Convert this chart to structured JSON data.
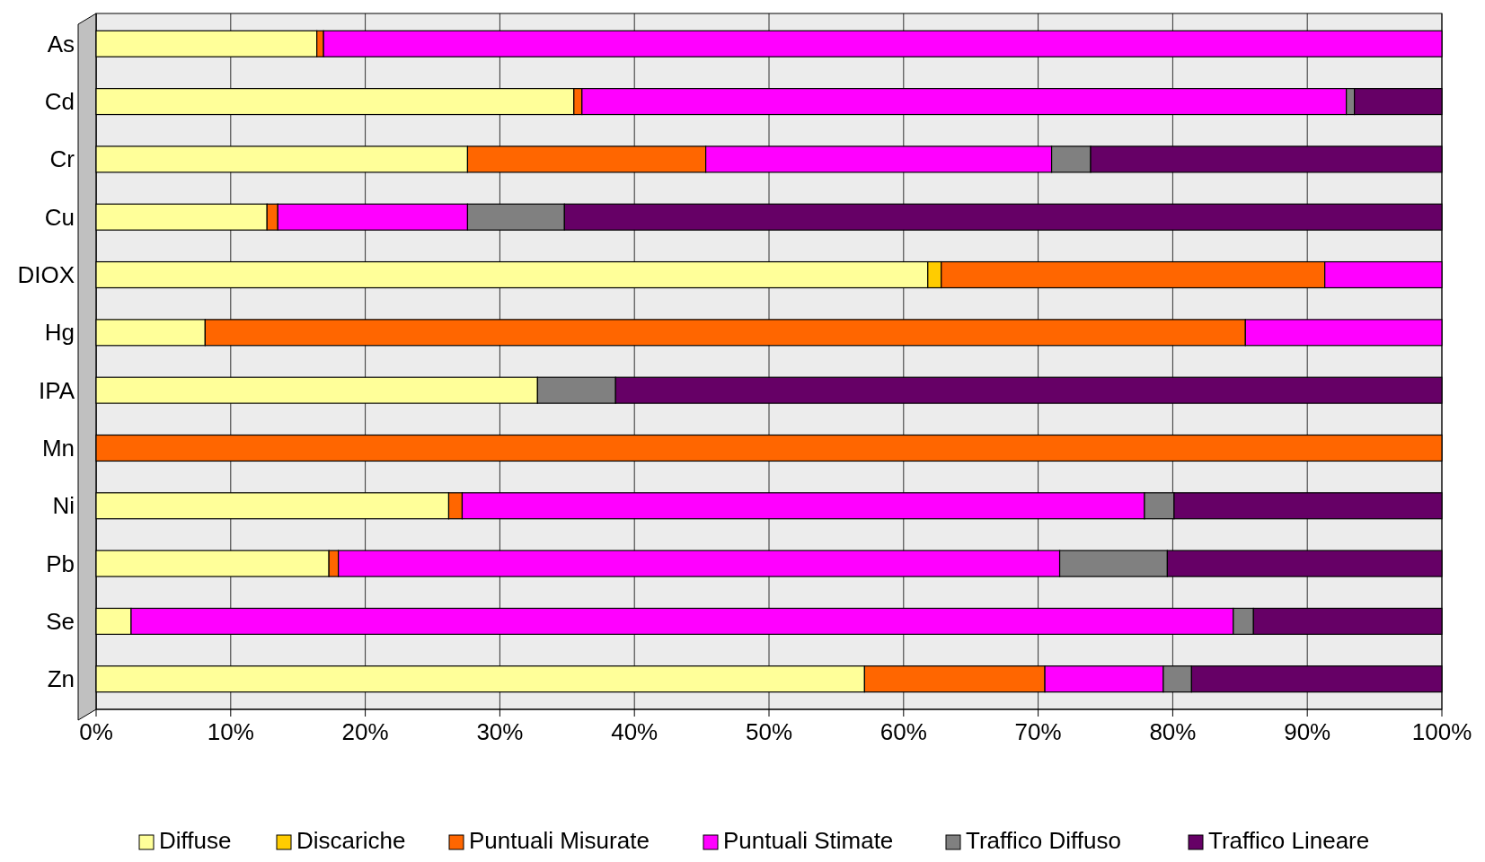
{
  "chart_data": {
    "type": "bar",
    "orientation": "horizontal",
    "stacked": true,
    "grid": "x",
    "legend": "bottom",
    "categories": [
      "As",
      "Cd",
      "Cr",
      "Cu",
      "DIOX",
      "Hg",
      "IPA",
      "Mn",
      "Ni",
      "Pb",
      "Se",
      "Zn"
    ],
    "xlim": [
      0,
      100
    ],
    "xticks": [
      {
        "value": 0,
        "label": "0%"
      },
      {
        "value": 10,
        "label": "10%"
      },
      {
        "value": 20,
        "label": "20%"
      },
      {
        "value": 30,
        "label": "30%"
      },
      {
        "value": 40,
        "label": "40%"
      },
      {
        "value": 50,
        "label": "50%"
      },
      {
        "value": 60,
        "label": "60%"
      },
      {
        "value": 70,
        "label": "70%"
      },
      {
        "value": 80,
        "label": "80%"
      },
      {
        "value": 90,
        "label": "90%"
      },
      {
        "value": 100,
        "label": "100%"
      }
    ],
    "series": [
      {
        "name": "Diffuse",
        "color": "#ffff99",
        "values": [
          16.4,
          35.5,
          27.6,
          12.7,
          61.8,
          8.1,
          32.8,
          0,
          26.2,
          17.3,
          2.6,
          57.1
        ]
      },
      {
        "name": "Discariche",
        "color": "#ffcc00",
        "values": [
          0,
          0,
          0,
          0,
          1.0,
          0,
          0,
          0,
          0,
          0,
          0,
          0
        ]
      },
      {
        "name": "Puntuali Misurate",
        "color": "#ff6600",
        "values": [
          0.5,
          0.6,
          17.7,
          0.8,
          28.5,
          77.3,
          0,
          100,
          1.0,
          0.7,
          0,
          13.4
        ]
      },
      {
        "name": "Puntuali Stimate",
        "color": "#ff00ff",
        "values": [
          83.1,
          56.8,
          25.7,
          14.1,
          8.7,
          14.6,
          0,
          0,
          50.7,
          53.6,
          81.9,
          8.8
        ]
      },
      {
        "name": "Traffico Diffuso",
        "color": "#808080",
        "values": [
          0,
          0.6,
          2.9,
          7.2,
          0,
          0,
          5.8,
          0,
          2.2,
          8.0,
          1.5,
          2.1
        ]
      },
      {
        "name": "Traffico Lineare",
        "color": "#660066",
        "values": [
          0,
          6.5,
          26.1,
          65.2,
          0,
          0,
          61.4,
          0,
          19.9,
          20.4,
          14.0,
          18.6
        ]
      }
    ]
  }
}
